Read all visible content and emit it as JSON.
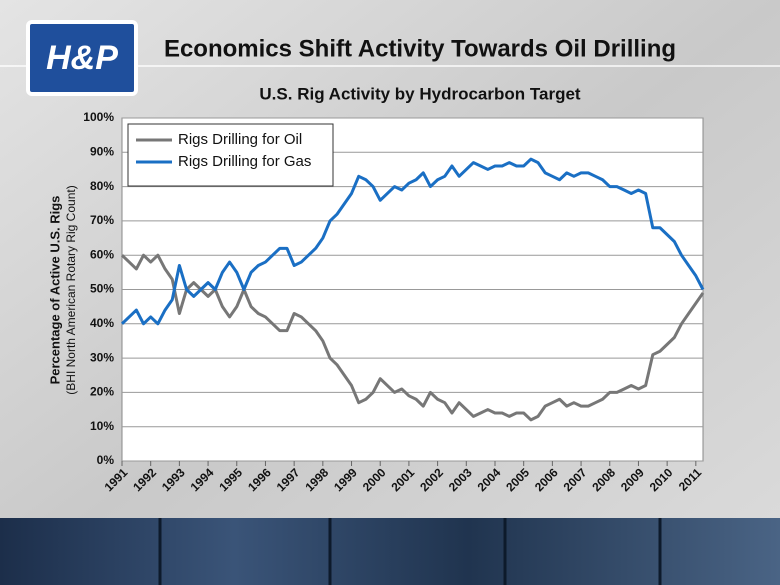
{
  "header": {
    "logo": "H&P",
    "title": "Economics Shift Activity Towards Oil Drilling"
  },
  "chart_data": {
    "type": "line",
    "title": "U.S. Rig Activity by Hydrocarbon Target",
    "y_label": "Percentage of Active U.S. Rigs",
    "y_label_note": "(BHI North American Rotary Rig Count)",
    "x": [
      1991,
      1991.25,
      1991.5,
      1991.75,
      1992,
      1992.25,
      1992.5,
      1992.75,
      1993,
      1993.25,
      1993.5,
      1993.75,
      1994,
      1994.25,
      1994.5,
      1994.75,
      1995,
      1995.25,
      1995.5,
      1995.75,
      1996,
      1996.25,
      1996.5,
      1996.75,
      1997,
      1997.25,
      1997.5,
      1997.75,
      1998,
      1998.25,
      1998.5,
      1998.75,
      1999,
      1999.25,
      1999.5,
      1999.75,
      2000,
      2000.25,
      2000.5,
      2000.75,
      2001,
      2001.25,
      2001.5,
      2001.75,
      2002,
      2002.25,
      2002.5,
      2002.75,
      2003,
      2003.25,
      2003.5,
      2003.75,
      2004,
      2004.25,
      2004.5,
      2004.75,
      2005,
      2005.25,
      2005.5,
      2005.75,
      2006,
      2006.25,
      2006.5,
      2006.75,
      2007,
      2007.25,
      2007.5,
      2007.75,
      2008,
      2008.25,
      2008.5,
      2008.75,
      2009,
      2009.25,
      2009.5,
      2009.75,
      2010,
      2010.25,
      2010.5,
      2010.75,
      2011,
      2011.25
    ],
    "series": [
      {
        "name": "Rigs Drilling for Oil",
        "color": "#777777",
        "values": [
          60,
          58,
          56,
          60,
          58,
          60,
          56,
          53,
          43,
          50,
          52,
          50,
          48,
          50,
          45,
          42,
          45,
          50,
          45,
          43,
          42,
          40,
          38,
          38,
          43,
          42,
          40,
          38,
          35,
          30,
          28,
          25,
          22,
          17,
          18,
          20,
          24,
          22,
          20,
          21,
          19,
          18,
          16,
          20,
          18,
          17,
          14,
          17,
          15,
          13,
          14,
          15,
          14,
          14,
          13,
          14,
          14,
          12,
          13,
          16,
          17,
          18,
          16,
          17,
          16,
          16,
          17,
          18,
          20,
          20,
          21,
          22,
          21,
          22,
          31,
          32,
          34,
          36,
          40,
          43,
          46,
          49
        ]
      },
      {
        "name": "Rigs Drilling for Gas",
        "color": "#1a6fc4",
        "values": [
          40,
          42,
          44,
          40,
          42,
          40,
          44,
          47,
          57,
          50,
          48,
          50,
          52,
          50,
          55,
          58,
          55,
          50,
          55,
          57,
          58,
          60,
          62,
          62,
          57,
          58,
          60,
          62,
          65,
          70,
          72,
          75,
          78,
          83,
          82,
          80,
          76,
          78,
          80,
          79,
          81,
          82,
          84,
          80,
          82,
          83,
          86,
          83,
          85,
          87,
          86,
          85,
          86,
          86,
          87,
          86,
          86,
          88,
          87,
          84,
          83,
          82,
          84,
          83,
          84,
          84,
          83,
          82,
          80,
          80,
          79,
          78,
          79,
          78,
          68,
          68,
          66,
          64,
          60,
          57,
          54,
          50
        ]
      }
    ],
    "xlim": [
      1991,
      2011.25
    ],
    "xticks": [
      1991,
      1992,
      1993,
      1994,
      1995,
      1996,
      1997,
      1998,
      1999,
      2000,
      2001,
      2002,
      2003,
      2004,
      2005,
      2006,
      2007,
      2008,
      2009,
      2010,
      2011
    ],
    "ylim": [
      0,
      100
    ],
    "yticks": [
      {
        "value": 0,
        "label": "0%"
      },
      {
        "value": 10,
        "label": "10%"
      },
      {
        "value": 20,
        "label": "20%"
      },
      {
        "value": 30,
        "label": "30%"
      },
      {
        "value": 40,
        "label": "40%"
      },
      {
        "value": 50,
        "label": "50%"
      },
      {
        "value": 60,
        "label": "60%"
      },
      {
        "value": 70,
        "label": "70%"
      },
      {
        "value": 80,
        "label": "80%"
      },
      {
        "value": 90,
        "label": "90%"
      },
      {
        "value": 100,
        "label": "100%"
      }
    ],
    "grid": true,
    "legend": "upper left"
  }
}
